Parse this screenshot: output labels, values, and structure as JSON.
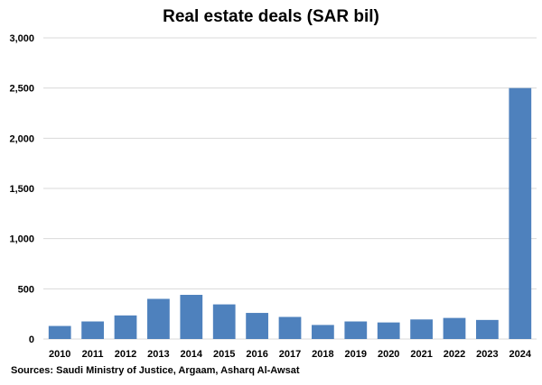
{
  "chart_data": {
    "type": "bar",
    "title": "Real estate deals (SAR bil)",
    "categories": [
      "2010",
      "2011",
      "2012",
      "2013",
      "2014",
      "2015",
      "2016",
      "2017",
      "2018",
      "2019",
      "2020",
      "2021",
      "2022",
      "2023",
      "2024"
    ],
    "values": [
      130,
      175,
      235,
      400,
      440,
      345,
      260,
      220,
      140,
      175,
      165,
      195,
      210,
      190,
      2500
    ],
    "ylim": [
      0,
      3000
    ],
    "yticks": [
      0,
      500,
      1000,
      1500,
      2000,
      2500,
      3000
    ],
    "ytick_labels": [
      "0",
      "500",
      "1,000",
      "1,500",
      "2,000",
      "2,500",
      "3,000"
    ],
    "xlabel": "",
    "ylabel": "",
    "grid": true,
    "bar_color": "#4e81bd",
    "grid_color": "#d9d9d9"
  },
  "source": "Sources: Saudi Ministry of Justice, Argaam, Asharq Al-Awsat"
}
